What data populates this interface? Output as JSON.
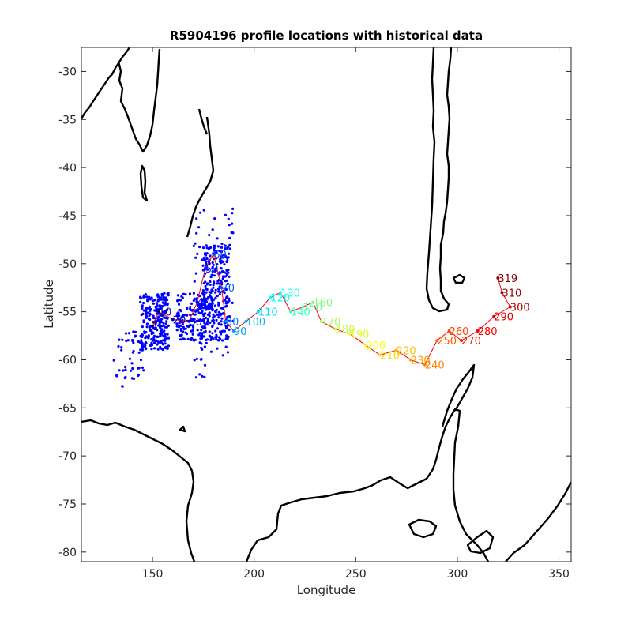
{
  "chart_data": {
    "type": "scatter",
    "title": "R5904196 profile locations with historical data",
    "xlabel": "Longitude",
    "ylabel": "Latitude",
    "xlim": [
      115,
      356
    ],
    "ylim": [
      -81,
      -27.5
    ],
    "xticks": [
      150,
      200,
      250,
      300,
      350
    ],
    "yticks": [
      -30,
      -35,
      -40,
      -45,
      -50,
      -55,
      -60,
      -65,
      -70,
      -75,
      -80
    ],
    "grid": false,
    "legend": "none",
    "colormap": "jet",
    "historical_color": "#0000ff",
    "track_color": "#ff0000",
    "coastline_color": "#000000",
    "profile_track": [
      {
        "lon": 150,
        "lat": -56.5,
        "label": "1"
      },
      {
        "lon": 153,
        "lat": -55.0,
        "label": "10"
      },
      {
        "lon": 160,
        "lat": -55.8,
        "label": "20"
      },
      {
        "lon": 168,
        "lat": -56.0,
        "label": "30"
      },
      {
        "lon": 172,
        "lat": -54.0,
        "label": "40"
      },
      {
        "lon": 176,
        "lat": -50.5,
        "label": "50"
      },
      {
        "lon": 180,
        "lat": -49.0,
        "label": "60"
      },
      {
        "lon": 184,
        "lat": -52.5,
        "label": "70"
      },
      {
        "lon": 186,
        "lat": -56.0,
        "label": "80"
      },
      {
        "lon": 190,
        "lat": -57.0,
        "label": "90"
      },
      {
        "lon": 196,
        "lat": -56.0,
        "label": "100"
      },
      {
        "lon": 202,
        "lat": -55.0,
        "label": "110"
      },
      {
        "lon": 208,
        "lat": -53.5,
        "label": "120"
      },
      {
        "lon": 213,
        "lat": -53.0,
        "label": "130"
      },
      {
        "lon": 218,
        "lat": -55.0,
        "label": "140"
      },
      {
        "lon": 224,
        "lat": -54.5,
        "label": "150"
      },
      {
        "lon": 229,
        "lat": -54.0,
        "label": "160"
      },
      {
        "lon": 233,
        "lat": -56.0,
        "label": "170"
      },
      {
        "lon": 240,
        "lat": -56.8,
        "label": "180"
      },
      {
        "lon": 247,
        "lat": -57.3,
        "label": "190"
      },
      {
        "lon": 255,
        "lat": -58.5,
        "label": "200"
      },
      {
        "lon": 262,
        "lat": -59.5,
        "label": "210"
      },
      {
        "lon": 270,
        "lat": -59.0,
        "label": "220"
      },
      {
        "lon": 277,
        "lat": -60.0,
        "label": "230"
      },
      {
        "lon": 284,
        "lat": -60.5,
        "label": "240"
      },
      {
        "lon": 290,
        "lat": -58.0,
        "label": "250"
      },
      {
        "lon": 296,
        "lat": -57.0,
        "label": "260"
      },
      {
        "lon": 302,
        "lat": -58.0,
        "label": "270"
      },
      {
        "lon": 310,
        "lat": -57.0,
        "label": "280"
      },
      {
        "lon": 318,
        "lat": -55.5,
        "label": "290"
      },
      {
        "lon": 326,
        "lat": -54.5,
        "label": "300"
      },
      {
        "lon": 322,
        "lat": -53.0,
        "label": "310"
      },
      {
        "lon": 320,
        "lat": -51.5,
        "label": "319"
      }
    ],
    "historical_clusters": [
      {
        "lon": [
          144,
          158
        ],
        "lat": [
          -59,
          -53
        ],
        "n": 260
      },
      {
        "lon": [
          162,
          180
        ],
        "lat": [
          -58,
          -53
        ],
        "n": 180
      },
      {
        "lon": [
          175,
          188
        ],
        "lat": [
          -58,
          -48
        ],
        "n": 240
      },
      {
        "lon": [
          170,
          190
        ],
        "lat": [
          -62,
          -44
        ],
        "n": 90
      },
      {
        "lon": [
          131,
          146
        ],
        "lat": [
          -63,
          -57
        ],
        "n": 45
      }
    ]
  }
}
